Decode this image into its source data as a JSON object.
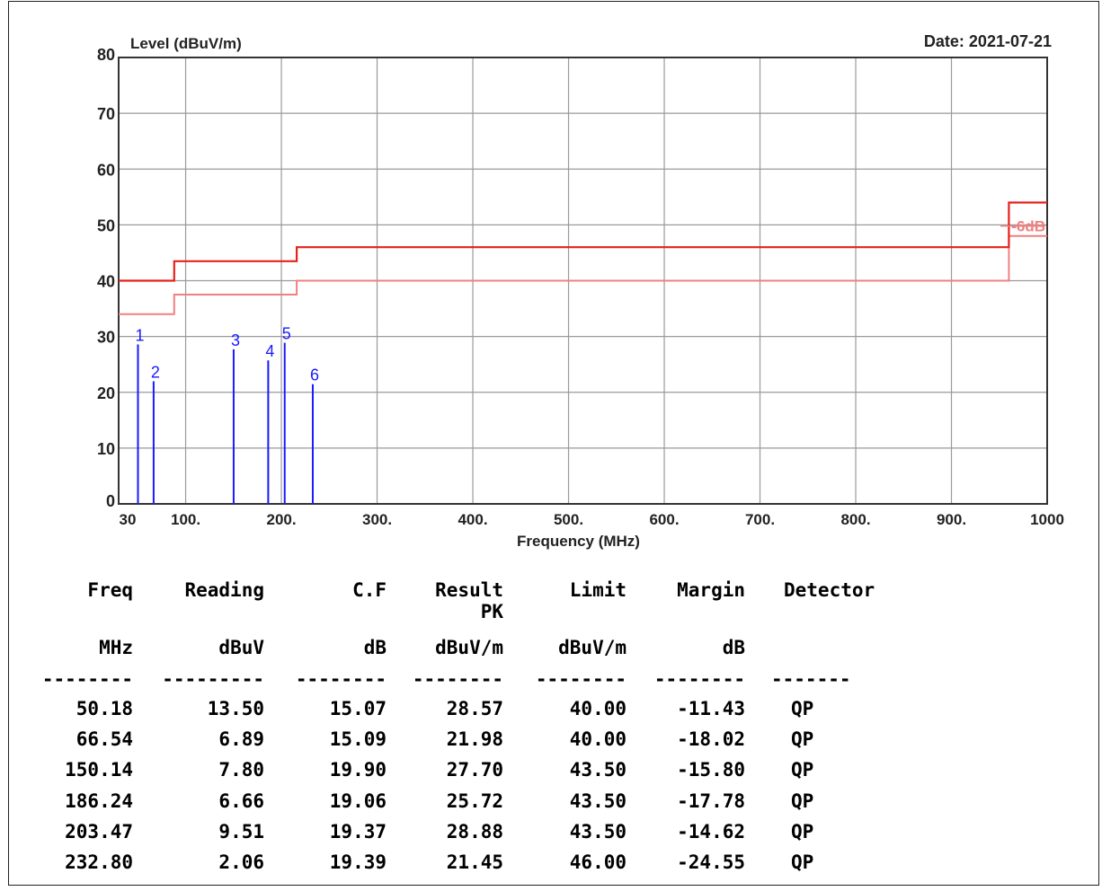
{
  "chart_data": {
    "type": "emission-spectrum",
    "ylabel": "Level (dBuV/m)",
    "xlabel": "Frequency (MHz)",
    "date_label": "Date: 2021-07-21",
    "ylim": [
      0,
      80
    ],
    "xlim": [
      30,
      1000
    ],
    "yticks": [
      "0",
      "10",
      "20",
      "30",
      "40",
      "50",
      "60",
      "70",
      "80"
    ],
    "xticks": [
      {
        "value": 30,
        "label": "30"
      },
      {
        "value": 100,
        "label": "100."
      },
      {
        "value": 200,
        "label": "200."
      },
      {
        "value": 300,
        "label": "300."
      },
      {
        "value": 400,
        "label": "400."
      },
      {
        "value": 500,
        "label": "500."
      },
      {
        "value": 600,
        "label": "600."
      },
      {
        "value": 700,
        "label": "700."
      },
      {
        "value": 800,
        "label": "800."
      },
      {
        "value": 900,
        "label": "900."
      },
      {
        "value": 1000,
        "label": "1000"
      }
    ],
    "grid": true,
    "limit_line": {
      "color": "#e8201c",
      "points": [
        [
          30,
          40.0
        ],
        [
          88,
          40.0
        ],
        [
          88,
          43.5
        ],
        [
          216,
          43.5
        ],
        [
          216,
          46.0
        ],
        [
          960,
          46.0
        ],
        [
          960,
          54.0
        ],
        [
          1000,
          54.0
        ]
      ]
    },
    "margin_line": {
      "label": "-6dB",
      "color": "#f08080",
      "points": [
        [
          30,
          34.0
        ],
        [
          88,
          34.0
        ],
        [
          88,
          37.5
        ],
        [
          216,
          37.5
        ],
        [
          216,
          40.0
        ],
        [
          960,
          40.0
        ],
        [
          960,
          48.0
        ],
        [
          1000,
          48.0
        ]
      ]
    },
    "markers": [
      {
        "label": "1",
        "freq": 50.18,
        "level": 28.57
      },
      {
        "label": "2",
        "freq": 66.54,
        "level": 21.98
      },
      {
        "label": "3",
        "freq": 150.14,
        "level": 27.7
      },
      {
        "label": "4",
        "freq": 186.24,
        "level": 25.72
      },
      {
        "label": "5",
        "freq": 203.47,
        "level": 28.88
      },
      {
        "label": "6",
        "freq": 232.8,
        "level": 21.45
      }
    ],
    "marker_color": "#1a1aff"
  },
  "table": {
    "headers": [
      "Freq",
      "Reading",
      "C.F",
      "Result",
      "Limit",
      "Margin",
      "Detector"
    ],
    "subheader": "PK",
    "units": [
      "MHz",
      "dBuV",
      "dB",
      "dBuV/m",
      "dBuV/m",
      "dB",
      ""
    ],
    "separators": [
      "--------",
      "---------",
      "--------",
      "--------",
      "--------",
      "--------",
      "-------"
    ],
    "rows": [
      [
        "50.18",
        "13.50",
        "15.07",
        "28.57",
        "40.00",
        "-11.43",
        "QP"
      ],
      [
        "66.54",
        "6.89",
        "15.09",
        "21.98",
        "40.00",
        "-18.02",
        "QP"
      ],
      [
        "150.14",
        "7.80",
        "19.90",
        "27.70",
        "43.50",
        "-15.80",
        "QP"
      ],
      [
        "186.24",
        "6.66",
        "19.06",
        "25.72",
        "43.50",
        "-17.78",
        "QP"
      ],
      [
        "203.47",
        "9.51",
        "19.37",
        "28.88",
        "43.50",
        "-14.62",
        "QP"
      ],
      [
        "232.80",
        "2.06",
        "19.39",
        "21.45",
        "46.00",
        "-24.55",
        "QP"
      ]
    ]
  }
}
